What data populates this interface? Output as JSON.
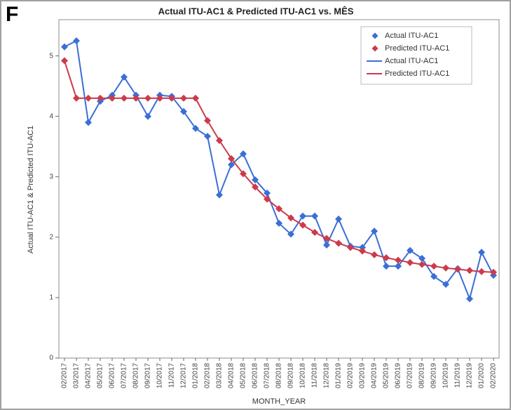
{
  "chart_data": {
    "type": "line",
    "panel_label": "F",
    "title": "Actual ITU-AC1 & Predicted ITU-AC1 vs. MÊS",
    "x_label": "MONTH_YEAR",
    "y_label": "Actual ITU-AC1 & Predicted ITU-AC1",
    "categories": [
      "02/2017",
      "03/2017",
      "04/2017",
      "05/2017",
      "06/2017",
      "07/2017",
      "08/2017",
      "09/2017",
      "10/2017",
      "11/2017",
      "12/2017",
      "01/2018",
      "02/2018",
      "03/2018",
      "04/2018",
      "05/2018",
      "06/2018",
      "07/2018",
      "08/2018",
      "09/2018",
      "10/2018",
      "11/2018",
      "12/2018",
      "01/2019",
      "02/2019",
      "03/2019",
      "04/2019",
      "05/2019",
      "06/2019",
      "07/2019",
      "08/2019",
      "09/2019",
      "10/2019",
      "11/2019",
      "12/2019",
      "01/2020",
      "02/2020"
    ],
    "series": [
      {
        "name": "Actual ITU-AC1",
        "color": "#3a6fd6",
        "values": [
          5.15,
          5.25,
          3.9,
          4.25,
          4.35,
          4.65,
          4.35,
          4.0,
          4.35,
          4.33,
          4.08,
          3.8,
          3.67,
          2.7,
          3.2,
          3.38,
          2.95,
          2.73,
          2.23,
          2.05,
          2.35,
          2.35,
          1.87,
          2.3,
          1.85,
          1.83,
          2.1,
          1.52,
          1.52,
          1.78,
          1.65,
          1.35,
          1.22,
          1.48,
          0.98,
          1.75,
          1.37
        ]
      },
      {
        "name": "Predicted ITU-AC1",
        "color": "#cc3b4b",
        "values": [
          4.92,
          4.3,
          4.3,
          4.3,
          4.3,
          4.3,
          4.3,
          4.3,
          4.3,
          4.3,
          4.3,
          4.3,
          3.93,
          3.6,
          3.3,
          3.05,
          2.83,
          2.63,
          2.47,
          2.32,
          2.2,
          2.08,
          1.98,
          1.9,
          1.83,
          1.77,
          1.71,
          1.66,
          1.62,
          1.58,
          1.55,
          1.52,
          1.49,
          1.47,
          1.45,
          1.43,
          1.42
        ]
      }
    ],
    "ylim": [
      0,
      5.6
    ],
    "yticks": [
      0,
      1,
      2,
      3,
      4,
      5
    ],
    "legend": "top-right"
  }
}
